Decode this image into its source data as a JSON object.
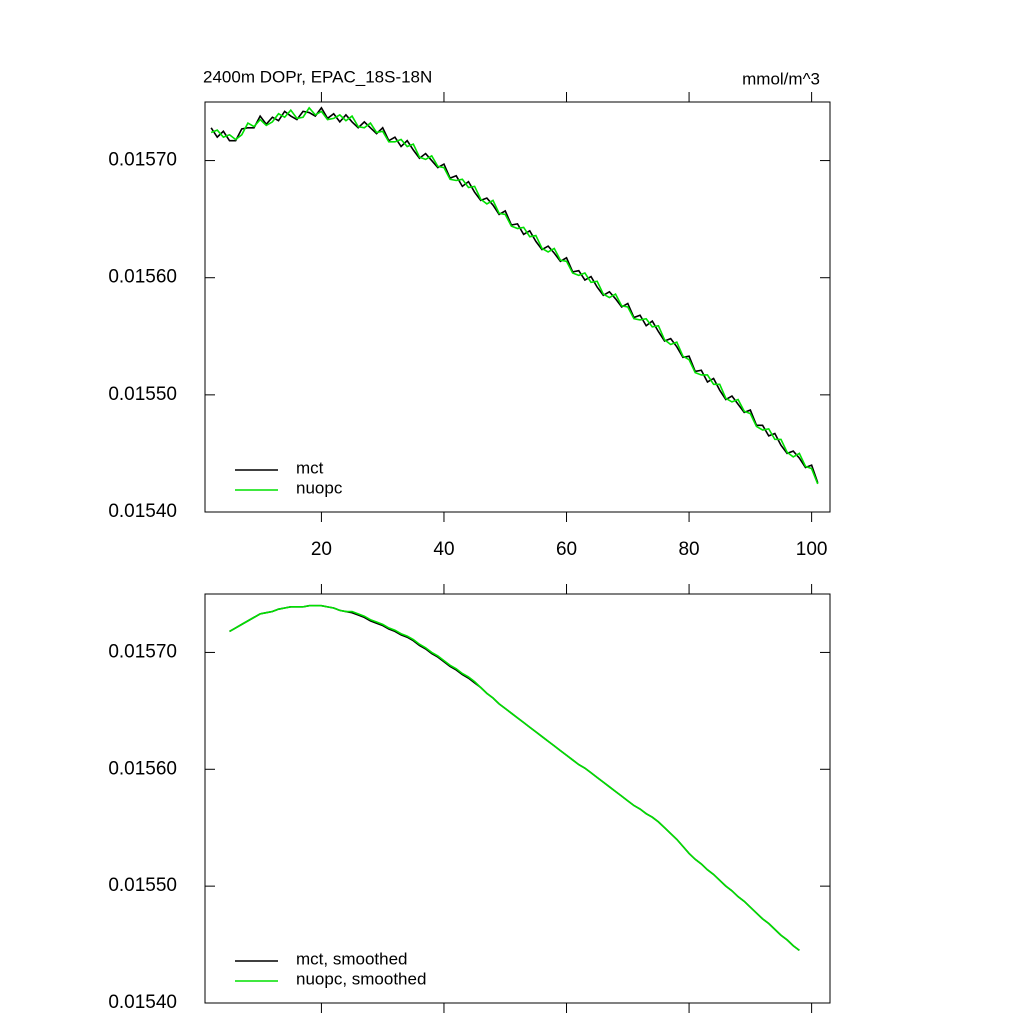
{
  "chart_data": [
    {
      "type": "line",
      "title": "2400m DOPr, EPAC_18S-18N",
      "units_label": "mmol/m^3",
      "x": [
        2,
        3,
        4,
        5,
        6,
        7,
        8,
        9,
        10,
        11,
        12,
        13,
        14,
        15,
        16,
        17,
        18,
        19,
        20,
        21,
        22,
        23,
        24,
        25,
        26,
        27,
        28,
        29,
        30,
        31,
        32,
        33,
        34,
        35,
        36,
        37,
        38,
        39,
        40,
        41,
        42,
        43,
        44,
        45,
        46,
        47,
        48,
        49,
        50,
        51,
        52,
        53,
        54,
        55,
        56,
        57,
        58,
        59,
        60,
        61,
        62,
        63,
        64,
        65,
        66,
        67,
        68,
        69,
        70,
        71,
        72,
        73,
        74,
        75,
        76,
        77,
        78,
        79,
        80,
        81,
        82,
        83,
        84,
        85,
        86,
        87,
        88,
        89,
        90,
        91,
        92,
        93,
        94,
        95,
        96,
        97,
        98,
        99,
        100,
        101
      ],
      "series": [
        {
          "name": "mct",
          "color": "#000000",
          "values": [
            0.015728,
            0.01572,
            0.015725,
            0.015717,
            0.015717,
            0.015727,
            0.015728,
            0.015728,
            0.015738,
            0.015731,
            0.015737,
            0.015734,
            0.015742,
            0.015738,
            0.015735,
            0.015742,
            0.015741,
            0.015738,
            0.015745,
            0.015736,
            0.01574,
            0.015733,
            0.015739,
            0.015733,
            0.015728,
            0.015733,
            0.015728,
            0.015723,
            0.015728,
            0.015717,
            0.01572,
            0.015712,
            0.015717,
            0.015709,
            0.015702,
            0.015706,
            0.0157,
            0.015694,
            0.015697,
            0.015685,
            0.015687,
            0.015678,
            0.015682,
            0.015673,
            0.015666,
            0.015668,
            0.015662,
            0.015654,
            0.015657,
            0.015645,
            0.015646,
            0.015637,
            0.01564,
            0.015631,
            0.015624,
            0.015627,
            0.015621,
            0.015614,
            0.015617,
            0.015605,
            0.015606,
            0.015598,
            0.015601,
            0.015592,
            0.015585,
            0.015588,
            0.015582,
            0.015575,
            0.015578,
            0.015566,
            0.015568,
            0.015559,
            0.015563,
            0.015554,
            0.015546,
            0.015548,
            0.015541,
            0.015532,
            0.015533,
            0.01552,
            0.015521,
            0.015511,
            0.015514,
            0.015504,
            0.015496,
            0.015499,
            0.015492,
            0.015485,
            0.015487,
            0.015474,
            0.015474,
            0.015465,
            0.015467,
            0.015457,
            0.01545,
            0.015452,
            0.015446,
            0.015438,
            0.01544,
            0.015425
          ]
        },
        {
          "name": "nuopc",
          "color": "#00e000",
          "values": [
            0.015724,
            0.015726,
            0.01572,
            0.015722,
            0.015718,
            0.015722,
            0.015732,
            0.015729,
            0.015735,
            0.01573,
            0.015733,
            0.01574,
            0.015737,
            0.015743,
            0.015736,
            0.015737,
            0.015745,
            0.015739,
            0.015742,
            0.015735,
            0.015736,
            0.015739,
            0.015734,
            0.015738,
            0.015729,
            0.015728,
            0.015732,
            0.015724,
            0.015725,
            0.015716,
            0.015716,
            0.015718,
            0.015712,
            0.015714,
            0.015703,
            0.015701,
            0.015704,
            0.015695,
            0.015694,
            0.015684,
            0.015683,
            0.015684,
            0.015677,
            0.015678,
            0.015667,
            0.015663,
            0.015666,
            0.015655,
            0.015654,
            0.015644,
            0.015642,
            0.015643,
            0.015635,
            0.015636,
            0.015625,
            0.015622,
            0.015625,
            0.015615,
            0.015614,
            0.015604,
            0.015602,
            0.015604,
            0.015596,
            0.015597,
            0.015586,
            0.015583,
            0.015586,
            0.015576,
            0.015575,
            0.015565,
            0.015564,
            0.015565,
            0.015558,
            0.015559,
            0.015547,
            0.015543,
            0.015545,
            0.015533,
            0.01553,
            0.015519,
            0.015517,
            0.015517,
            0.015509,
            0.015509,
            0.015497,
            0.015494,
            0.015496,
            0.015486,
            0.015484,
            0.015473,
            0.01547,
            0.015471,
            0.015462,
            0.015462,
            0.015451,
            0.015447,
            0.01545,
            0.015439,
            0.015437,
            0.015424
          ]
        }
      ],
      "xlim": [
        1,
        103
      ],
      "xticks": [
        20,
        40,
        60,
        80,
        100
      ],
      "xtick_labels": true,
      "ylim": [
        0.0154,
        0.01575
      ],
      "yticks": [
        {
          "value": 0.0154,
          "label": "0.01540"
        },
        {
          "value": 0.0155,
          "label": "0.01550"
        },
        {
          "value": 0.0156,
          "label": "0.01560"
        },
        {
          "value": 0.0157,
          "label": "0.01570"
        }
      ],
      "legend": "lower left"
    },
    {
      "type": "line",
      "x": [
        2,
        3,
        4,
        5,
        6,
        7,
        8,
        9,
        10,
        11,
        12,
        13,
        14,
        15,
        16,
        17,
        18,
        19,
        20,
        21,
        22,
        23,
        24,
        25,
        26,
        27,
        28,
        29,
        30,
        31,
        32,
        33,
        34,
        35,
        36,
        37,
        38,
        39,
        40,
        41,
        42,
        43,
        44,
        45,
        46,
        47,
        48,
        49,
        50,
        51,
        52,
        53,
        54,
        55,
        56,
        57,
        58,
        59,
        60,
        61,
        62,
        63,
        64,
        65,
        66,
        67,
        68,
        69,
        70,
        71,
        72,
        73,
        74,
        75,
        76,
        77,
        78,
        79,
        80,
        81,
        82,
        83,
        84,
        85,
        86,
        87,
        88,
        89,
        90,
        91,
        92,
        93,
        94,
        95,
        96,
        97,
        98,
        99,
        100,
        101
      ],
      "series": [
        {
          "name": "mct, smoothed",
          "color": "#000000",
          "values": [
            null,
            null,
            null,
            0.015718,
            0.015721,
            0.015724,
            0.015727,
            0.01573,
            0.015733,
            0.015734,
            0.015735,
            0.015737,
            0.015738,
            0.015739,
            0.015739,
            0.015739,
            0.01574,
            0.01574,
            0.01574,
            0.015739,
            0.015738,
            0.015736,
            0.015735,
            0.015734,
            0.015732,
            0.01573,
            0.015727,
            0.015725,
            0.015723,
            0.01572,
            0.015718,
            0.015715,
            0.015713,
            0.01571,
            0.015706,
            0.015703,
            0.015699,
            0.015696,
            0.015692,
            0.015688,
            0.015685,
            0.015681,
            0.015678,
            0.015674,
            0.01567,
            0.015665,
            0.015661,
            0.015656,
            0.015652,
            0.015648,
            0.015644,
            0.01564,
            0.015636,
            0.015632,
            0.015628,
            0.015624,
            0.01562,
            0.015616,
            0.015612,
            0.015608,
            0.015604,
            0.015601,
            0.015597,
            0.015593,
            0.015589,
            0.015585,
            0.015581,
            0.015577,
            0.015573,
            0.015569,
            0.015566,
            0.015562,
            0.015559,
            0.015555,
            0.01555,
            0.015545,
            0.01554,
            0.015534,
            0.015528,
            0.015523,
            0.015519,
            0.015514,
            0.01551,
            0.015505,
            0.0155,
            0.015496,
            0.015491,
            0.015487,
            0.015482,
            0.015477,
            0.015472,
            0.015468,
            0.015463,
            0.015458,
            0.015454,
            0.015449,
            0.015445,
            null,
            null,
            null
          ]
        },
        {
          "name": "nuopc, smoothed",
          "color": "#00e000",
          "values": [
            null,
            null,
            null,
            0.015718,
            0.015721,
            0.015724,
            0.015727,
            0.01573,
            0.015733,
            0.015734,
            0.015735,
            0.015737,
            0.015738,
            0.015739,
            0.015739,
            0.015739,
            0.01574,
            0.01574,
            0.01574,
            0.015739,
            0.015738,
            0.015736,
            0.015735,
            0.015735,
            0.015733,
            0.015731,
            0.015728,
            0.015726,
            0.015724,
            0.015721,
            0.015719,
            0.015716,
            0.015714,
            0.015711,
            0.015707,
            0.015704,
            0.0157,
            0.015697,
            0.015693,
            0.015689,
            0.015686,
            0.015682,
            0.015679,
            0.015675,
            0.01567,
            0.015665,
            0.015661,
            0.015656,
            0.015652,
            0.015648,
            0.015644,
            0.01564,
            0.015636,
            0.015632,
            0.015628,
            0.015624,
            0.01562,
            0.015616,
            0.015612,
            0.015608,
            0.015604,
            0.015601,
            0.015597,
            0.015593,
            0.015589,
            0.015585,
            0.015581,
            0.015577,
            0.015573,
            0.015569,
            0.015566,
            0.015562,
            0.015559,
            0.015555,
            0.01555,
            0.015545,
            0.01554,
            0.015534,
            0.015528,
            0.015523,
            0.015519,
            0.015514,
            0.01551,
            0.015505,
            0.0155,
            0.015496,
            0.015491,
            0.015487,
            0.015482,
            0.015477,
            0.015472,
            0.015468,
            0.015463,
            0.015458,
            0.015454,
            0.015449,
            0.015445,
            null,
            null,
            null
          ]
        }
      ],
      "xlim": [
        1,
        103
      ],
      "xticks": [
        20,
        40,
        60,
        80,
        100
      ],
      "xtick_labels": false,
      "ylim": [
        0.0154,
        0.01575
      ],
      "yticks": [
        {
          "value": 0.0154,
          "label": "0.01540"
        },
        {
          "value": 0.0155,
          "label": "0.01550"
        },
        {
          "value": 0.0156,
          "label": "0.01560"
        },
        {
          "value": 0.0157,
          "label": "0.01570"
        }
      ],
      "legend": "lower left"
    }
  ]
}
